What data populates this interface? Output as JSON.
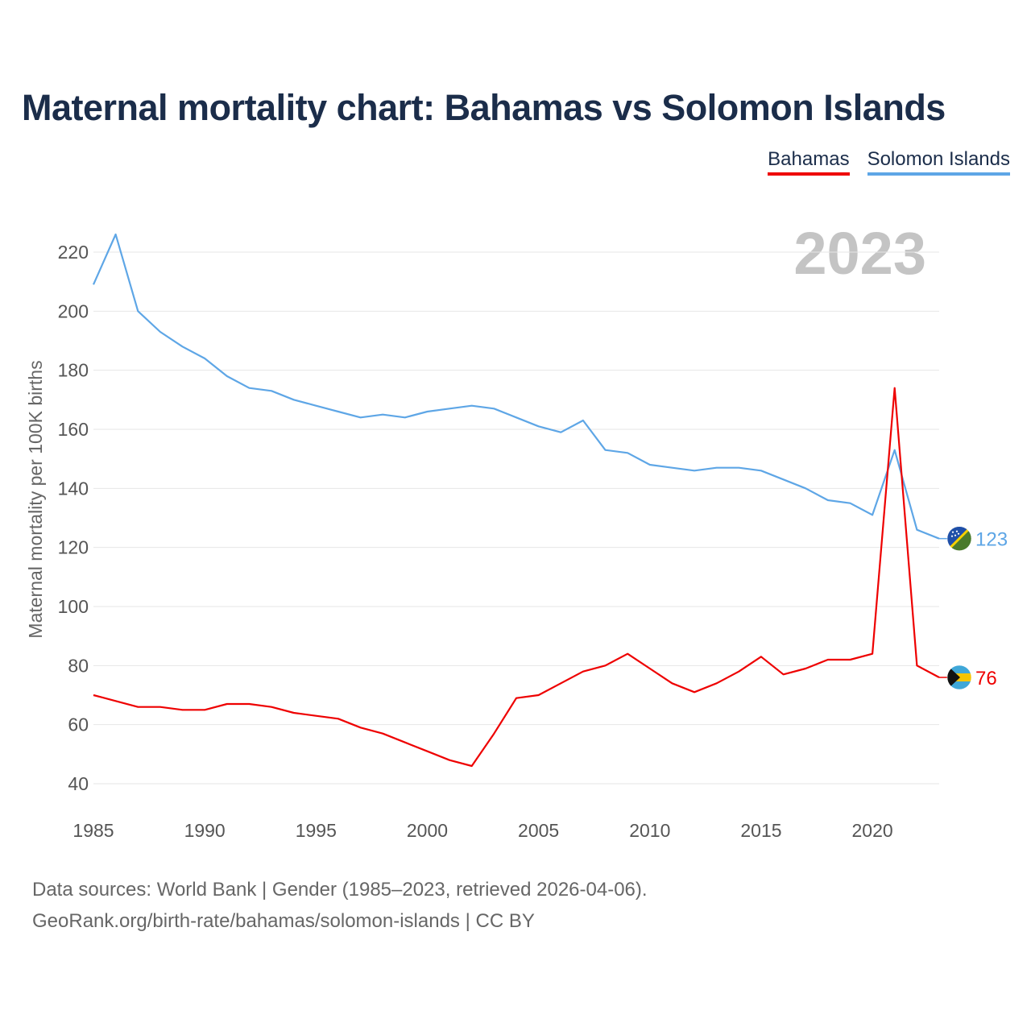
{
  "title": "Maternal mortality chart: Bahamas vs Solomon Islands",
  "legend": [
    {
      "name": "Bahamas",
      "color": "#ee0000"
    },
    {
      "name": "Solomon Islands",
      "color": "#5ea6e6"
    }
  ],
  "current_year": "2023",
  "source_line1": "Data sources: World Bank | Gender (1985–2023, retrieved 2026-04-06).",
  "source_line2": "GeoRank.org/birth-rate/bahamas/solomon-islands | CC BY",
  "chart_data": {
    "type": "line",
    "title": "Maternal mortality chart: Bahamas vs Solomon Islands",
    "xlabel": "",
    "ylabel": "Maternal mortality per 100K births",
    "xlim": [
      1985,
      2023
    ],
    "ylim": [
      40,
      220
    ],
    "x_ticks": [
      1985,
      1990,
      1995,
      2000,
      2005,
      2010,
      2015,
      2020
    ],
    "y_ticks": [
      40,
      60,
      80,
      100,
      120,
      140,
      160,
      180,
      200,
      220
    ],
    "grid": true,
    "x": [
      1985,
      1986,
      1987,
      1988,
      1989,
      1990,
      1991,
      1992,
      1993,
      1994,
      1995,
      1996,
      1997,
      1998,
      1999,
      2000,
      2001,
      2002,
      2003,
      2004,
      2005,
      2006,
      2007,
      2008,
      2009,
      2010,
      2011,
      2012,
      2013,
      2014,
      2015,
      2016,
      2017,
      2018,
      2019,
      2020,
      2021,
      2022,
      2023
    ],
    "series": [
      {
        "name": "Solomon Islands",
        "color": "#5ea6e6",
        "end_label": "123",
        "values": [
          209,
          226,
          200,
          193,
          188,
          184,
          178,
          174,
          173,
          170,
          168,
          166,
          164,
          165,
          164,
          166,
          167,
          168,
          167,
          164,
          161,
          159,
          163,
          153,
          152,
          148,
          147,
          146,
          147,
          147,
          146,
          143,
          140,
          136,
          135,
          131,
          153,
          126,
          123
        ]
      },
      {
        "name": "Bahamas",
        "color": "#ee0000",
        "end_label": "76",
        "values": [
          70,
          68,
          66,
          66,
          65,
          65,
          67,
          67,
          66,
          64,
          63,
          62,
          59,
          57,
          54,
          51,
          48,
          46,
          57,
          69,
          70,
          74,
          78,
          80,
          84,
          79,
          74,
          71,
          74,
          78,
          83,
          77,
          79,
          82,
          82,
          84,
          174,
          80,
          76
        ]
      }
    ]
  }
}
